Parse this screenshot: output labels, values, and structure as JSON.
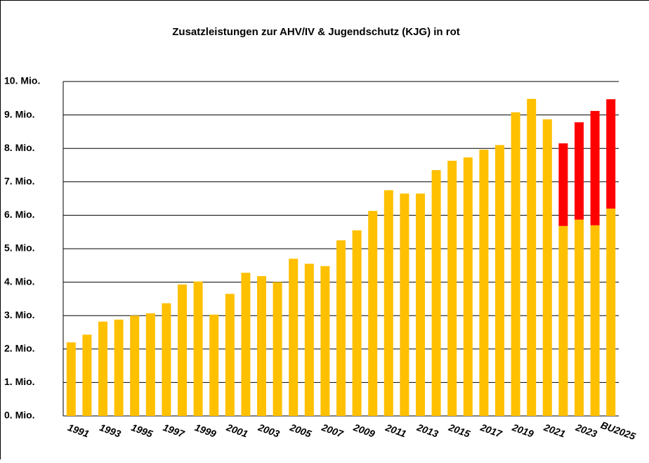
{
  "chart_data": {
    "type": "bar",
    "stacked": true,
    "title": "Zusatzleistungen zur AHV/IV  & Jugendschutz (KJG) in rot",
    "categories": [
      "1991",
      null,
      "1993",
      null,
      "1995",
      null,
      "1997",
      null,
      "1999",
      null,
      "2001",
      null,
      "2003",
      null,
      "2005",
      null,
      "2007",
      null,
      "2009",
      null,
      "2011",
      null,
      "2013",
      null,
      "2015",
      null,
      "2017",
      null,
      "2019",
      null,
      "2021",
      null,
      "2023",
      null,
      "BU2025"
    ],
    "series": [
      {
        "color": "#ffc000",
        "values": [
          2.2,
          2.43,
          2.82,
          2.88,
          3.0,
          3.07,
          3.37,
          3.93,
          4.02,
          3.03,
          3.65,
          4.28,
          4.18,
          4.0,
          4.7,
          4.55,
          4.48,
          5.25,
          5.55,
          6.13,
          6.75,
          6.65,
          6.65,
          7.35,
          7.63,
          7.73,
          7.96,
          8.1,
          9.08,
          9.48,
          8.87,
          5.68,
          5.87,
          5.7,
          6.2
        ]
      },
      {
        "color": "#ff0000",
        "values": [
          null,
          null,
          null,
          null,
          null,
          null,
          null,
          null,
          null,
          null,
          null,
          null,
          null,
          null,
          null,
          null,
          null,
          null,
          null,
          null,
          null,
          null,
          null,
          null,
          null,
          null,
          null,
          null,
          null,
          null,
          null,
          2.47,
          2.91,
          3.42,
          3.27
        ]
      }
    ],
    "ylim": [
      0,
      10
    ],
    "yticks": [
      {
        "value": 0,
        "label": "0. Mio."
      },
      {
        "value": 1,
        "label": "1. Mio."
      },
      {
        "value": 2,
        "label": "2. Mio."
      },
      {
        "value": 3,
        "label": "3. Mio."
      },
      {
        "value": 4,
        "label": "4. Mio."
      },
      {
        "value": 5,
        "label": "5. Mio."
      },
      {
        "value": 6,
        "label": "6. Mio."
      },
      {
        "value": 7,
        "label": "7. Mio."
      },
      {
        "value": 8,
        "label": "8. Mio."
      },
      {
        "value": 9,
        "label": "9. Mio."
      },
      {
        "value": 10,
        "label": "10. Mio."
      }
    ],
    "grid": true
  }
}
